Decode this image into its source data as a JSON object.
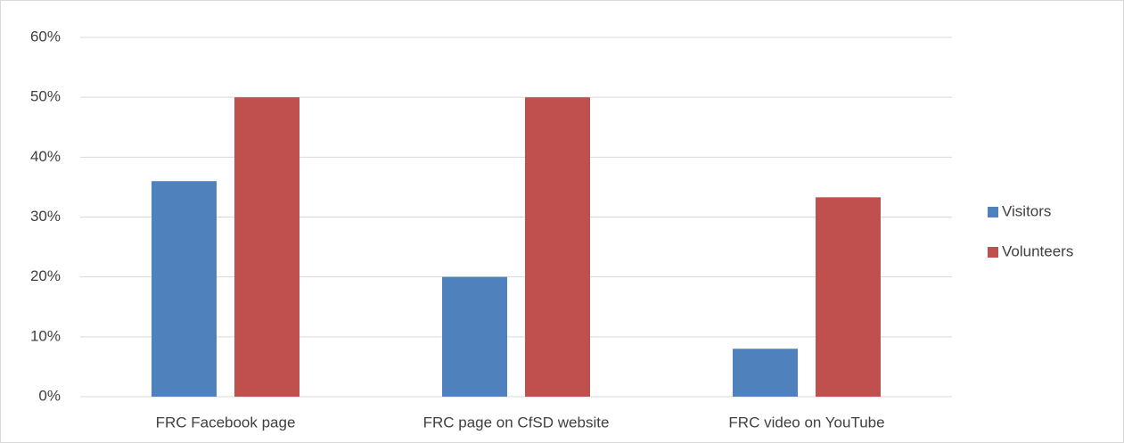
{
  "chart_data": {
    "type": "bar",
    "categories": [
      "FRC Facebook page",
      "FRC page on CfSD website",
      "FRC video on YouTube"
    ],
    "series": [
      {
        "name": "Visitors",
        "color": "#4f81bd",
        "values": [
          36,
          20,
          8
        ]
      },
      {
        "name": "Volunteers",
        "color": "#c0504d",
        "values": [
          50,
          50,
          33.3
        ]
      }
    ],
    "ylim": [
      0,
      60
    ],
    "yticks": [
      {
        "value": 0,
        "label": "0%"
      },
      {
        "value": 10,
        "label": "10%"
      },
      {
        "value": 20,
        "label": "20%"
      },
      {
        "value": 30,
        "label": "30%"
      },
      {
        "value": 40,
        "label": "40%"
      },
      {
        "value": 50,
        "label": "50%"
      },
      {
        "value": 60,
        "label": "60%"
      }
    ],
    "grid": true,
    "legend": "right"
  }
}
